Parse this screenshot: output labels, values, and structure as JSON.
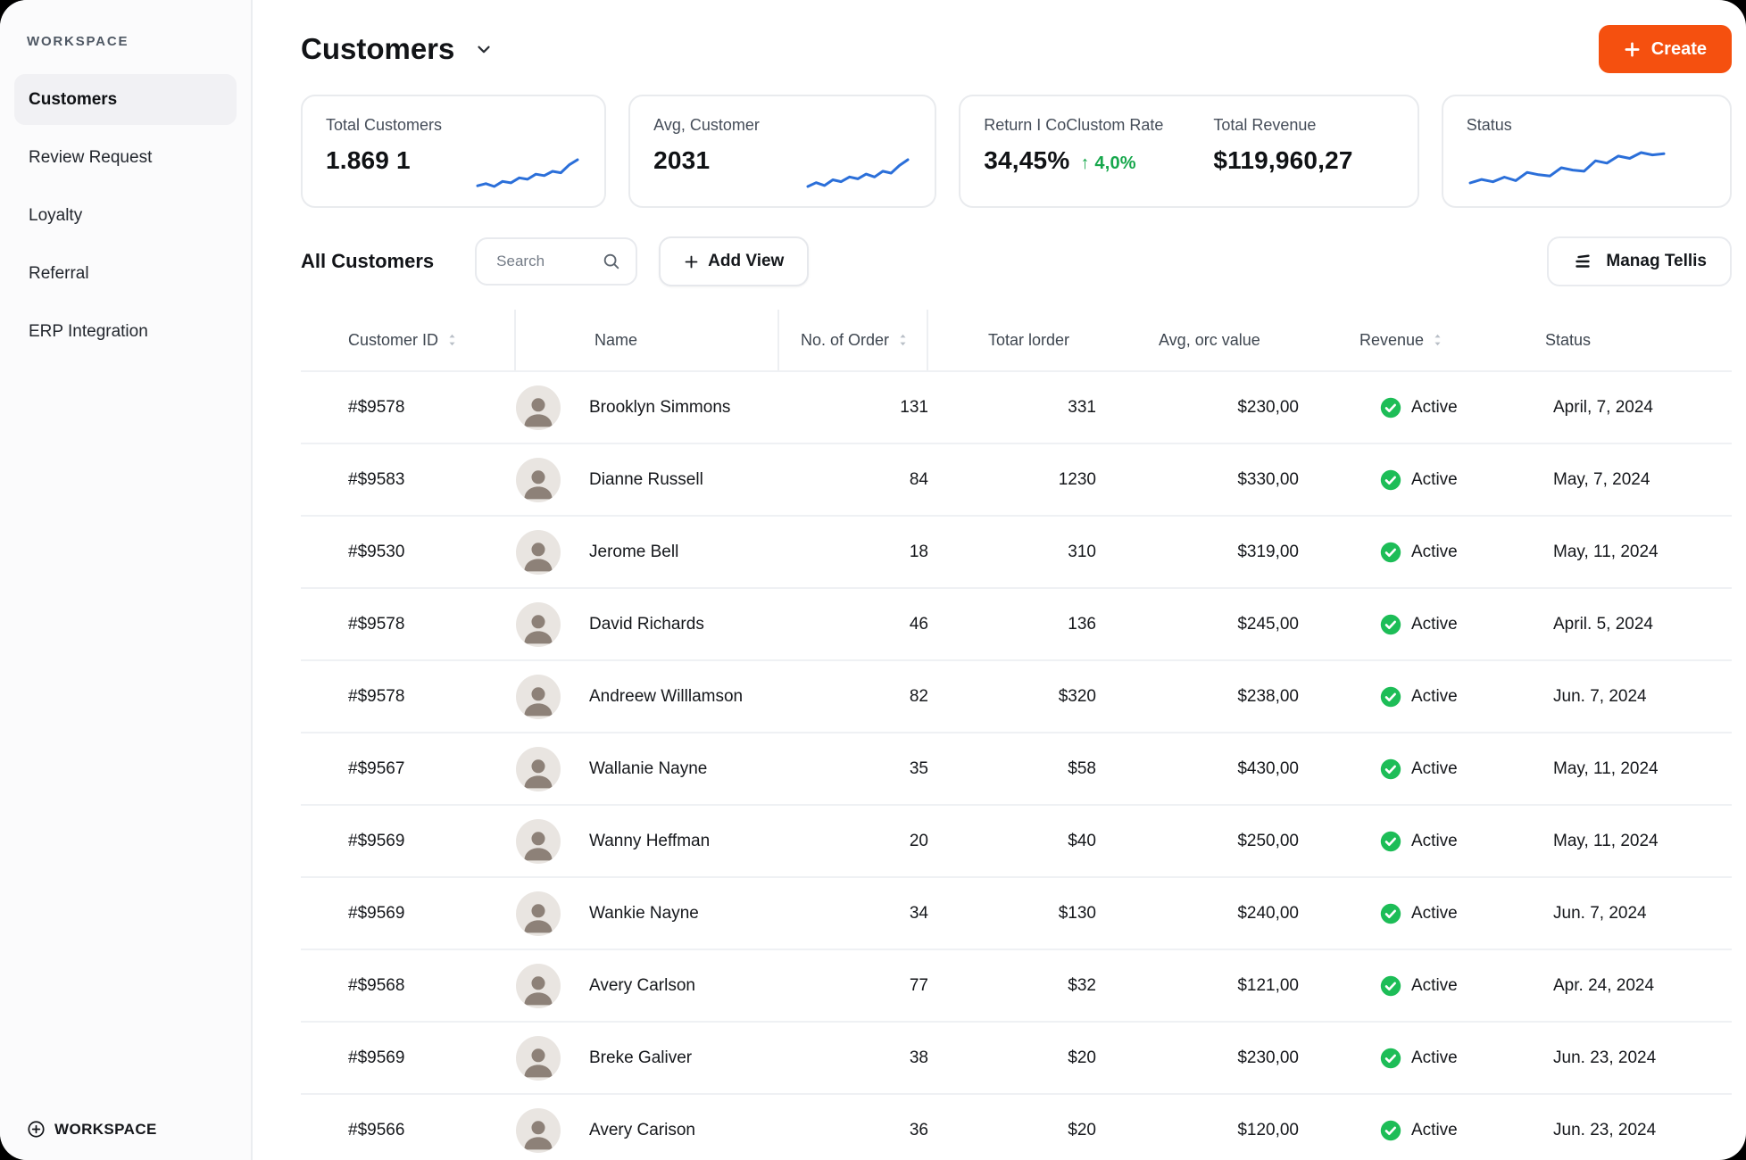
{
  "colors": {
    "accent_orange": "#F5500F",
    "sparkline_blue": "#2B6FD9",
    "badge_green": "#1DBD57",
    "delta_green": "#17A74C"
  },
  "sidebar": {
    "section_label": "WORKSPACE",
    "items": [
      {
        "label": "Customers",
        "active": true
      },
      {
        "label": "Review Request",
        "active": false
      },
      {
        "label": "Loyalty",
        "active": false
      },
      {
        "label": "Referral",
        "active": false
      },
      {
        "label": "ERP Integration",
        "active": false
      }
    ],
    "footer_label": "WORKSPACE"
  },
  "header": {
    "title": "Customers",
    "create_button": "Create"
  },
  "stats": {
    "total_customers": {
      "label": "Total Customers",
      "value": "1.869 1",
      "sparkline": [
        5,
        5.3,
        4.9,
        5.6,
        5.4,
        6.1,
        5.9,
        6.6,
        6.4,
        7.0,
        6.8,
        7.9,
        8.6
      ]
    },
    "avg_customer": {
      "label": "Avg, Customer",
      "value": "2031",
      "sparkline": [
        5,
        5.4,
        5.1,
        5.7,
        5.5,
        6.0,
        5.8,
        6.3,
        6.0,
        6.6,
        6.4,
        7.2,
        7.8
      ]
    },
    "return_rate": {
      "label": "Return I CoClustom Rate",
      "value": "34,45%",
      "delta_arrow": "↑",
      "delta": "4,0%"
    },
    "total_revenue": {
      "label": "Total Revenue",
      "value": "$119,960,27"
    },
    "status": {
      "label": "Status",
      "sparkline": [
        3,
        3.3,
        3.1,
        3.5,
        3.2,
        3.9,
        3.7,
        3.6,
        4.3,
        4.1,
        4.0,
        4.9,
        4.7,
        5.3,
        5.1,
        5.6,
        5.4,
        5.5
      ]
    }
  },
  "toolbar": {
    "title": "All Customers",
    "search_placeholder": "Search",
    "add_view_button": "Add View",
    "manage_button": "Manag Tellis"
  },
  "table": {
    "columns": [
      {
        "label": "Customer ID",
        "sortable": true
      },
      {
        "label": "Name",
        "sortable": false
      },
      {
        "label": "No. of Order",
        "sortable": true
      },
      {
        "label": "Totar lorder",
        "sortable": false
      },
      {
        "label": "Avg, orc value",
        "sortable": false
      },
      {
        "label": "Revenue",
        "sortable": true
      },
      {
        "label": "Status",
        "sortable": false
      }
    ],
    "rows": [
      {
        "id": "#$9578",
        "name": "Brooklyn Simmons",
        "orders": "131",
        "total_order": "331",
        "avg_value": "$230,00",
        "status": "Active",
        "date": "April, 7, 2024"
      },
      {
        "id": "#$9583",
        "name": "Dianne Russell",
        "orders": "84",
        "total_order": "1230",
        "avg_value": "$330,00",
        "status": "Active",
        "date": "May, 7, 2024"
      },
      {
        "id": "#$9530",
        "name": "Jerome Bell",
        "orders": "18",
        "total_order": "310",
        "avg_value": "$319,00",
        "status": "Active",
        "date": "May, 11, 2024"
      },
      {
        "id": "#$9578",
        "name": "David Richards",
        "orders": "46",
        "total_order": "136",
        "avg_value": "$245,00",
        "status": "Active",
        "date": "April. 5, 2024"
      },
      {
        "id": "#$9578",
        "name": "Andreew Willlamson",
        "orders": "82",
        "total_order": "$320",
        "avg_value": "$238,00",
        "status": "Active",
        "date": "Jun. 7, 2024"
      },
      {
        "id": "#$9567",
        "name": "Wallanie Nayne",
        "orders": "35",
        "total_order": "$58",
        "avg_value": "$430,00",
        "status": "Active",
        "date": "May, 11, 2024"
      },
      {
        "id": "#$9569",
        "name": "Wanny Heffman",
        "orders": "20",
        "total_order": "$40",
        "avg_value": "$250,00",
        "status": "Active",
        "date": "May, 11, 2024"
      },
      {
        "id": "#$9569",
        "name": "Wankie Nayne",
        "orders": "34",
        "total_order": "$130",
        "avg_value": "$240,00",
        "status": "Active",
        "date": "Jun. 7, 2024"
      },
      {
        "id": "#$9568",
        "name": "Avery Carlson",
        "orders": "77",
        "total_order": "$32",
        "avg_value": "$121,00",
        "status": "Active",
        "date": "Apr. 24, 2024"
      },
      {
        "id": "#$9569",
        "name": "Breke Galiver",
        "orders": "38",
        "total_order": "$20",
        "avg_value": "$230,00",
        "status": "Active",
        "date": "Jun. 23, 2024"
      },
      {
        "id": "#$9566",
        "name": "Avery Carison",
        "orders": "36",
        "total_order": "$20",
        "avg_value": "$120,00",
        "status": "Active",
        "date": "Jun. 23, 2024"
      }
    ]
  }
}
